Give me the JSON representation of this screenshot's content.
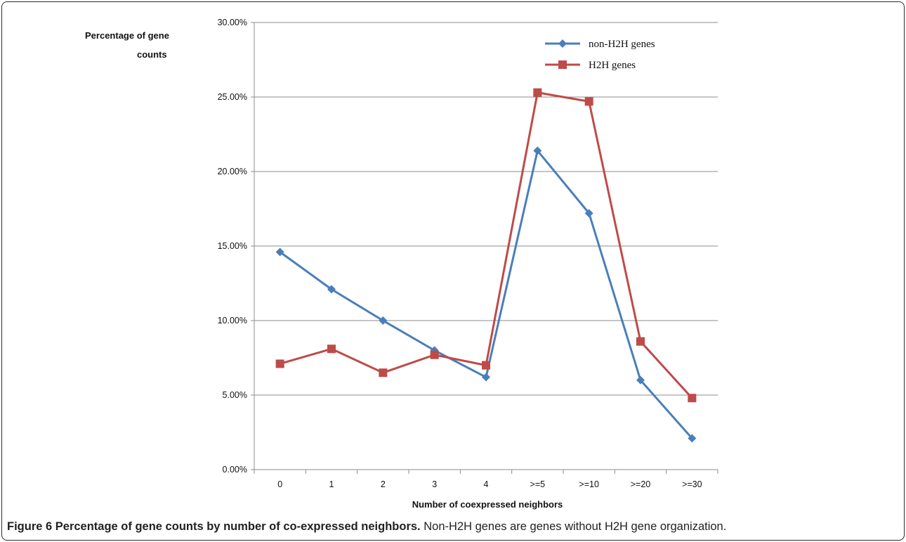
{
  "chart_data": {
    "type": "line",
    "title": "",
    "xlabel": "Number of coexpressed neighbors",
    "ylabel": "Percentage of gene counts",
    "ylabel_lines": [
      "Percentage of gene",
      "counts"
    ],
    "ylim": [
      0,
      30
    ],
    "yticks": [
      "0.00%",
      "5.00%",
      "10.00%",
      "15.00%",
      "20.00%",
      "25.00%",
      "30.00%"
    ],
    "categories": [
      "0",
      "1",
      "2",
      "3",
      "4",
      ">=5",
      ">=10",
      ">=20",
      ">=30"
    ],
    "grid": true,
    "legend_position": "top-right",
    "series": [
      {
        "name": "non-H2H genes",
        "color": "#4a7ebb",
        "marker": "diamond",
        "values": [
          14.6,
          12.1,
          10.0,
          8.0,
          6.2,
          21.4,
          17.2,
          6.0,
          2.1
        ]
      },
      {
        "name": "H2H genes",
        "color": "#be4b48",
        "marker": "square",
        "values": [
          7.1,
          8.1,
          6.5,
          7.7,
          7.0,
          25.3,
          24.7,
          8.6,
          4.8
        ]
      }
    ]
  },
  "caption": {
    "label": "Figure 6 Percentage of gene counts by number of co-expressed neighbors.",
    "text": " Non-H2H genes are genes without H2H gene organization."
  }
}
